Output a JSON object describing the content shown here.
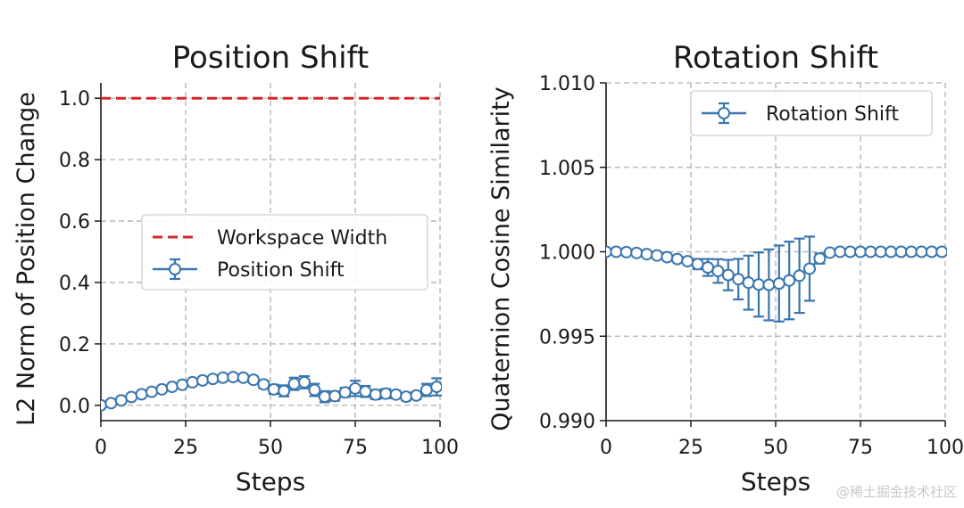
{
  "chart_data": [
    {
      "type": "line",
      "title": "Position Shift",
      "xlabel": "Steps",
      "ylabel": "L2 Norm of Position Change",
      "xlim": [
        0,
        100
      ],
      "ylim": [
        -0.05,
        1.05
      ],
      "xticks": [
        0,
        25,
        50,
        75,
        100
      ],
      "yticks": [
        0.0,
        0.2,
        0.4,
        0.6,
        0.8,
        1.0
      ],
      "ytick_labels": [
        "0.0",
        "0.2",
        "0.4",
        "0.6",
        "0.8",
        "1.0"
      ],
      "xtick_labels": [
        "0",
        "25",
        "50",
        "75",
        "100"
      ],
      "grid": true,
      "legend_position": "center-right",
      "series": [
        {
          "name": "Workspace Width",
          "style": "dashed",
          "color": "#d62728",
          "x": [
            0,
            100
          ],
          "y": [
            1.0,
            1.0
          ]
        },
        {
          "name": "Position Shift",
          "style": "errorbar",
          "color": "#3a76af",
          "x": [
            0,
            3,
            6,
            9,
            12,
            15,
            18,
            21,
            24,
            27,
            30,
            33,
            36,
            39,
            42,
            45,
            48,
            51,
            54,
            57,
            60,
            63,
            66,
            69,
            72,
            75,
            78,
            81,
            84,
            87,
            90,
            93,
            96,
            99
          ],
          "y": [
            0.0,
            0.007,
            0.016,
            0.027,
            0.036,
            0.044,
            0.052,
            0.06,
            0.067,
            0.075,
            0.081,
            0.086,
            0.09,
            0.092,
            0.09,
            0.083,
            0.068,
            0.052,
            0.047,
            0.07,
            0.075,
            0.05,
            0.028,
            0.03,
            0.042,
            0.055,
            0.045,
            0.035,
            0.038,
            0.035,
            0.028,
            0.032,
            0.05,
            0.06
          ],
          "err": [
            0.002,
            0.003,
            0.004,
            0.005,
            0.006,
            0.006,
            0.007,
            0.007,
            0.008,
            0.008,
            0.008,
            0.009,
            0.009,
            0.009,
            0.01,
            0.01,
            0.012,
            0.015,
            0.018,
            0.02,
            0.02,
            0.02,
            0.018,
            0.015,
            0.015,
            0.025,
            0.018,
            0.015,
            0.015,
            0.012,
            0.012,
            0.012,
            0.02,
            0.028
          ]
        }
      ]
    },
    {
      "type": "line",
      "title": "Rotation Shift",
      "xlabel": "Steps",
      "ylabel": "Quaternion Cosine Similarity",
      "xlim": [
        0,
        100
      ],
      "ylim": [
        0.99,
        1.01
      ],
      "xticks": [
        0,
        25,
        50,
        75,
        100
      ],
      "yticks": [
        0.99,
        0.995,
        1.0,
        1.005,
        1.01
      ],
      "ytick_labels": [
        "0.990",
        "0.995",
        "1.000",
        "1.005",
        "1.010"
      ],
      "xtick_labels": [
        "0",
        "25",
        "50",
        "75",
        "100"
      ],
      "grid": true,
      "legend_position": "upper-right",
      "series": [
        {
          "name": "Rotation Shift",
          "style": "errorbar",
          "color": "#3a76af",
          "x": [
            0,
            3,
            6,
            9,
            12,
            15,
            18,
            21,
            24,
            27,
            30,
            33,
            36,
            39,
            42,
            45,
            48,
            51,
            54,
            57,
            60,
            63,
            66,
            69,
            72,
            75,
            78,
            81,
            84,
            87,
            90,
            93,
            96,
            99
          ],
          "y": [
            1.0,
            1.0,
            0.99998,
            0.99993,
            0.99986,
            0.99978,
            0.99968,
            0.99957,
            0.99944,
            0.99927,
            0.99907,
            0.99886,
            0.99862,
            0.99838,
            0.99817,
            0.99806,
            0.99804,
            0.99812,
            0.9983,
            0.99858,
            0.999,
            0.9996,
            0.99995,
            1.0,
            1.0,
            1.0,
            1.0,
            1.0,
            1.0,
            1.0,
            1.0,
            1.0,
            1.0,
            1.0
          ],
          "err": [
            2e-05,
            3e-05,
            4e-05,
            5e-05,
            6e-05,
            7e-05,
            8e-05,
            0.0001,
            0.00012,
            0.0003,
            0.0005,
            0.0007,
            0.0009,
            0.0012,
            0.0016,
            0.0019,
            0.0021,
            0.00225,
            0.0023,
            0.0022,
            0.0019,
            0.0003,
            5e-05,
            3e-05,
            2e-05,
            2e-05,
            2e-05,
            2e-05,
            2e-05,
            2e-05,
            2e-05,
            2e-05,
            2e-05,
            2e-05
          ]
        }
      ]
    }
  ],
  "watermark": "@稀土掘金技术社区"
}
